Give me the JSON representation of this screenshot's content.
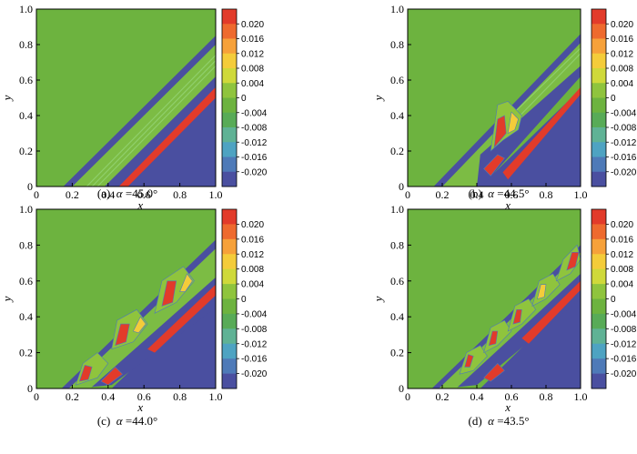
{
  "colors": {
    "green": "#6db33f",
    "blue": "#4a4fa0",
    "red": "#e23b2a",
    "levels": [
      "#e23b2a",
      "#ee6a2e",
      "#f6a13a",
      "#f4cc3a",
      "#cfd93a",
      "#8fc43d",
      "#6db33f",
      "#58ab57",
      "#5fb295",
      "#4ea3c2",
      "#4e7ab8",
      "#4a4fa0"
    ]
  },
  "colorbar": {
    "labels": [
      "0.020",
      "0.016",
      "0.012",
      "0.008",
      "0.004",
      "0",
      "-0.004",
      "-0.008",
      "-0.012",
      "-0.016",
      "-0.020"
    ]
  },
  "axes": {
    "xlabel": "x",
    "ylabel": "y",
    "xticks": [
      "0",
      "0.2",
      "0.4",
      "0.6",
      "0.8",
      "1.0"
    ],
    "yticks": [
      "0",
      "0.2",
      "0.4",
      "0.6",
      "0.8",
      "1.0"
    ]
  },
  "panels": [
    {
      "caption_letter": "(a)",
      "caption_symbol": "α",
      "caption_value": "=45.0°"
    },
    {
      "caption_letter": "(b)",
      "caption_symbol": "α",
      "caption_value": "=44.5°"
    },
    {
      "caption_letter": "(c)",
      "caption_symbol": "α",
      "caption_value": "=44.0°"
    },
    {
      "caption_letter": "(d)",
      "caption_symbol": "α",
      "caption_value": "=43.5°"
    }
  ]
}
